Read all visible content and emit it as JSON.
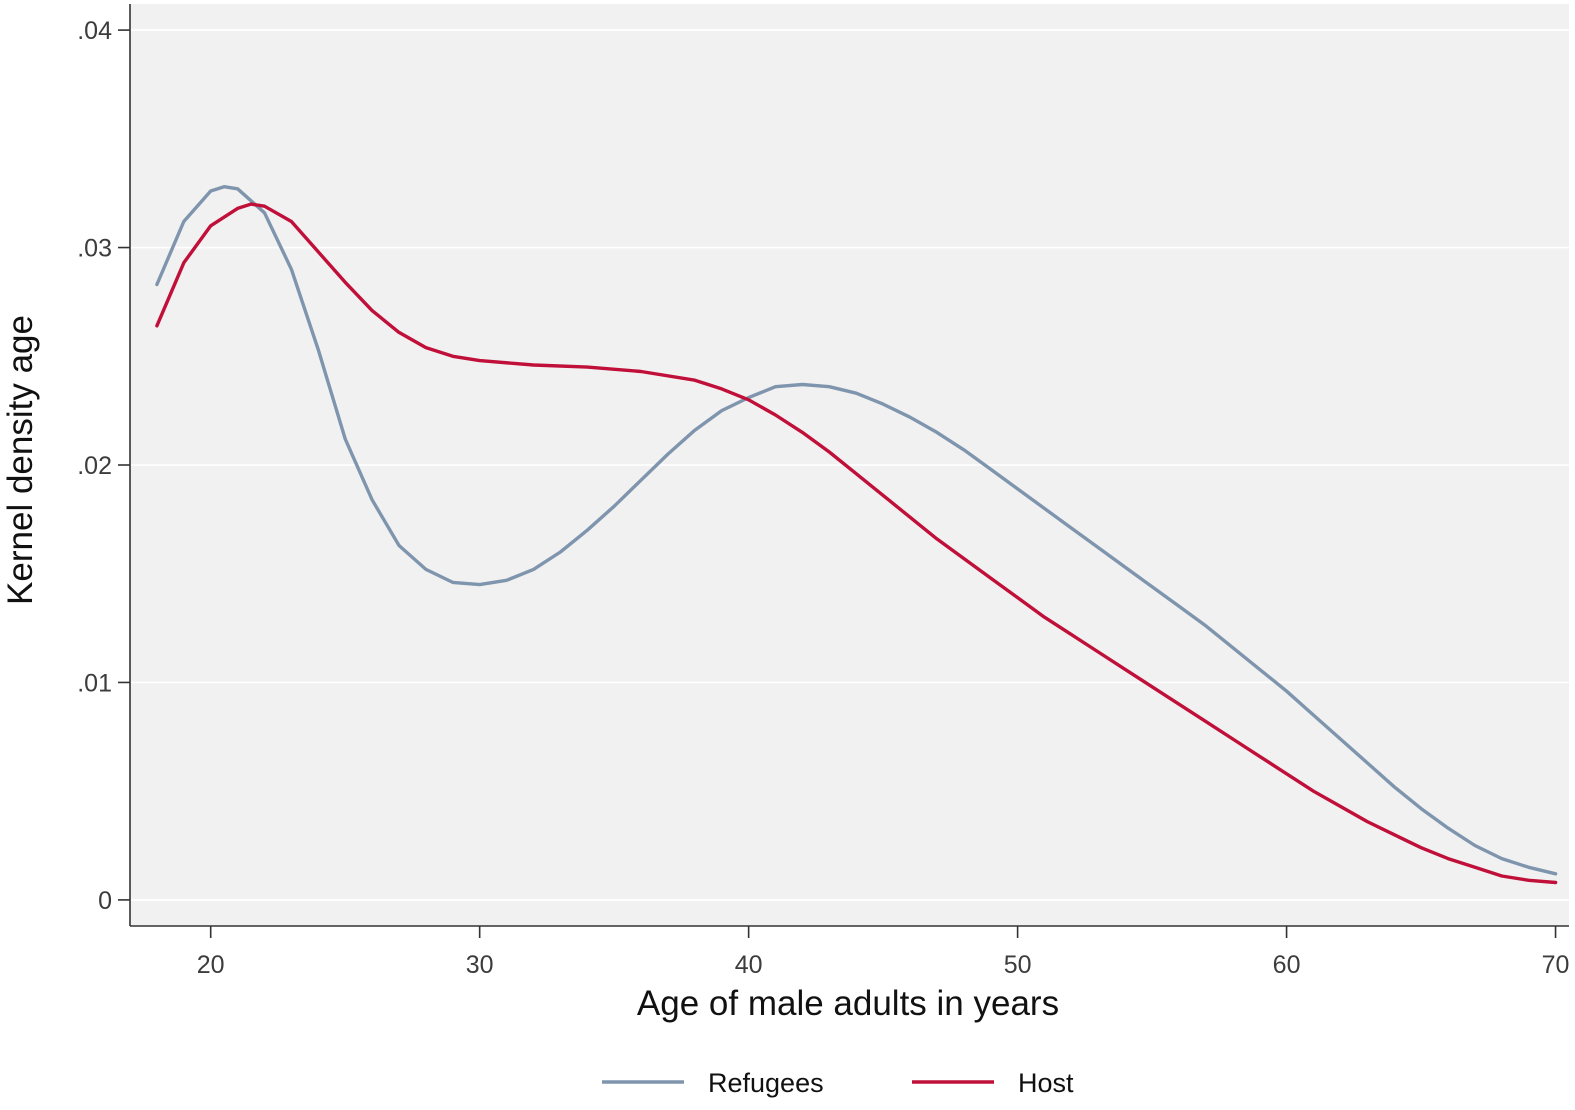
{
  "chart_data": {
    "type": "line",
    "xlabel": "Age of male adults in years",
    "ylabel": "Kernel density age",
    "xlim": [
      17,
      70.5
    ],
    "ylim": [
      -0.0012,
      0.0412
    ],
    "x_ticks": [
      20,
      30,
      40,
      50,
      60,
      70
    ],
    "x_tick_labels": [
      "20",
      "30",
      "40",
      "50",
      "60",
      "70"
    ],
    "y_ticks": [
      0,
      0.01,
      0.02,
      0.03,
      0.04
    ],
    "y_tick_labels": [
      "0",
      ".01",
      ".02",
      ".03",
      ".04"
    ],
    "grid": "horizontal",
    "legend_position": "bottom",
    "colors": {
      "plot_background": "#f1f1f1",
      "grid": "#ffffff",
      "axis": "#333333"
    },
    "series": [
      {
        "name": "Refugees",
        "color": "#7f95ad",
        "points": [
          [
            18,
            0.0283
          ],
          [
            19,
            0.0312
          ],
          [
            20,
            0.0326
          ],
          [
            20.5,
            0.0328
          ],
          [
            21,
            0.0327
          ],
          [
            22,
            0.0316
          ],
          [
            23,
            0.029
          ],
          [
            24,
            0.0253
          ],
          [
            25,
            0.0212
          ],
          [
            26,
            0.0184
          ],
          [
            27,
            0.0163
          ],
          [
            28,
            0.0152
          ],
          [
            29,
            0.0146
          ],
          [
            30,
            0.0145
          ],
          [
            31,
            0.0147
          ],
          [
            32,
            0.0152
          ],
          [
            33,
            0.016
          ],
          [
            34,
            0.017
          ],
          [
            35,
            0.0181
          ],
          [
            36,
            0.0193
          ],
          [
            37,
            0.0205
          ],
          [
            38,
            0.0216
          ],
          [
            39,
            0.0225
          ],
          [
            40,
            0.0231
          ],
          [
            41,
            0.0236
          ],
          [
            42,
            0.0237
          ],
          [
            43,
            0.0236
          ],
          [
            44,
            0.0233
          ],
          [
            45,
            0.0228
          ],
          [
            46,
            0.0222
          ],
          [
            47,
            0.0215
          ],
          [
            48,
            0.0207
          ],
          [
            49,
            0.0198
          ],
          [
            50,
            0.0189
          ],
          [
            51,
            0.018
          ],
          [
            52,
            0.0171
          ],
          [
            53,
            0.0162
          ],
          [
            54,
            0.0153
          ],
          [
            55,
            0.0144
          ],
          [
            56,
            0.0135
          ],
          [
            57,
            0.0126
          ],
          [
            58,
            0.0116
          ],
          [
            59,
            0.0106
          ],
          [
            60,
            0.0096
          ],
          [
            61,
            0.0085
          ],
          [
            62,
            0.0074
          ],
          [
            63,
            0.0063
          ],
          [
            64,
            0.0052
          ],
          [
            65,
            0.0042
          ],
          [
            66,
            0.0033
          ],
          [
            67,
            0.0025
          ],
          [
            68,
            0.0019
          ],
          [
            69,
            0.0015
          ],
          [
            70,
            0.0012
          ]
        ]
      },
      {
        "name": "Host",
        "color": "#c0103a",
        "points": [
          [
            18,
            0.0264
          ],
          [
            19,
            0.0293
          ],
          [
            20,
            0.031
          ],
          [
            21,
            0.0318
          ],
          [
            21.5,
            0.032
          ],
          [
            22,
            0.0319
          ],
          [
            23,
            0.0312
          ],
          [
            24,
            0.0298
          ],
          [
            25,
            0.0284
          ],
          [
            26,
            0.0271
          ],
          [
            27,
            0.0261
          ],
          [
            28,
            0.0254
          ],
          [
            29,
            0.025
          ],
          [
            30,
            0.0248
          ],
          [
            32,
            0.0246
          ],
          [
            34,
            0.0245
          ],
          [
            36,
            0.0243
          ],
          [
            38,
            0.0239
          ],
          [
            39,
            0.0235
          ],
          [
            40,
            0.023
          ],
          [
            41,
            0.0223
          ],
          [
            42,
            0.0215
          ],
          [
            43,
            0.0206
          ],
          [
            44,
            0.0196
          ],
          [
            45,
            0.0186
          ],
          [
            46,
            0.0176
          ],
          [
            47,
            0.0166
          ],
          [
            48,
            0.0157
          ],
          [
            49,
            0.0148
          ],
          [
            50,
            0.0139
          ],
          [
            51,
            0.013
          ],
          [
            52,
            0.0122
          ],
          [
            53,
            0.0114
          ],
          [
            54,
            0.0106
          ],
          [
            55,
            0.0098
          ],
          [
            56,
            0.009
          ],
          [
            57,
            0.0082
          ],
          [
            58,
            0.0074
          ],
          [
            59,
            0.0066
          ],
          [
            60,
            0.0058
          ],
          [
            61,
            0.005
          ],
          [
            62,
            0.0043
          ],
          [
            63,
            0.0036
          ],
          [
            64,
            0.003
          ],
          [
            65,
            0.0024
          ],
          [
            66,
            0.0019
          ],
          [
            67,
            0.0015
          ],
          [
            68,
            0.0011
          ],
          [
            69,
            0.0009
          ],
          [
            70,
            0.0008
          ]
        ]
      }
    ]
  }
}
